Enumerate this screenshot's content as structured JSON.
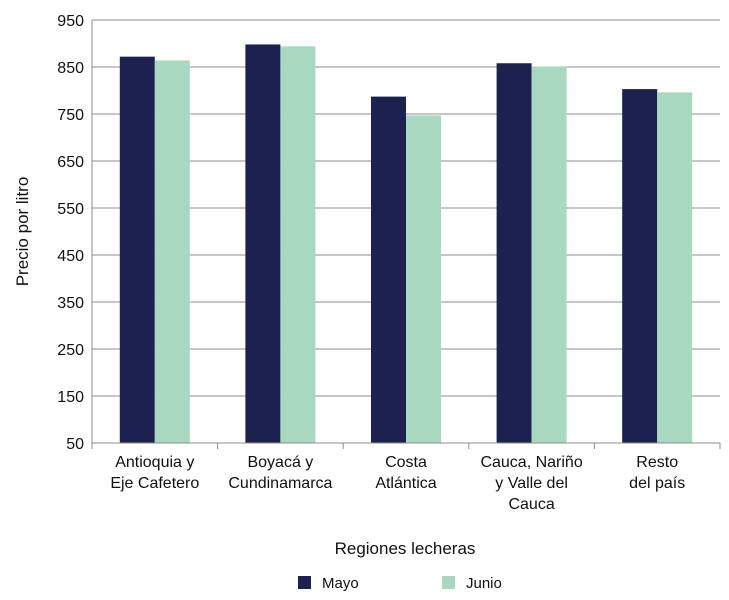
{
  "chart_data": {
    "type": "bar",
    "ylabel": "Precio por litro",
    "xlabel": "Regiones lecheras",
    "ylim": [
      50,
      950
    ],
    "yticks": [
      50,
      150,
      250,
      350,
      450,
      550,
      650,
      750,
      850,
      950
    ],
    "grid": true,
    "legend_position": "bottom",
    "categories": [
      [
        "Antioquia y",
        "Eje Cafetero"
      ],
      [
        "Boyacá y",
        "Cundinamarca"
      ],
      [
        "Costa",
        "Atlántica"
      ],
      [
        "Cauca, Nariño",
        "y Valle del",
        "Cauca"
      ],
      [
        "Resto",
        "del país"
      ]
    ],
    "series": [
      {
        "name": "Mayo",
        "color": "#1c2150",
        "values": [
          872,
          898,
          787,
          858,
          803
        ]
      },
      {
        "name": "Junio",
        "color": "#a8d8c0",
        "values": [
          864,
          894,
          747,
          851,
          796
        ]
      }
    ]
  }
}
